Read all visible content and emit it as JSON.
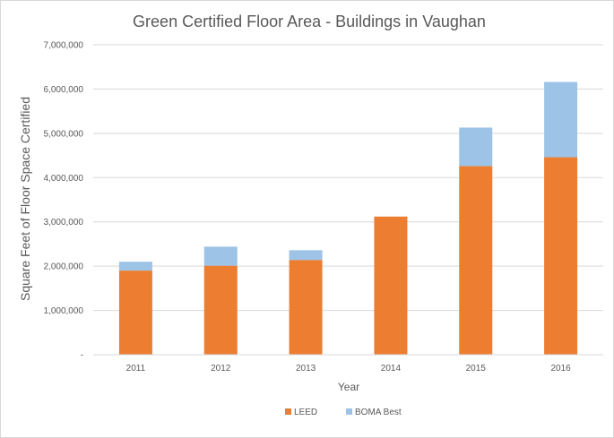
{
  "chart_data": {
    "type": "bar",
    "stacked": true,
    "title": "Green Certified Floor Area - Buildings in Vaughan",
    "xlabel": "Year",
    "ylabel": "Square Feet of Floor Space Certified",
    "categories": [
      "2011",
      "2012",
      "2013",
      "2014",
      "2015",
      "2016"
    ],
    "series": [
      {
        "name": "LEED",
        "color": "#ed7d31",
        "values": [
          1900000,
          2010000,
          2140000,
          3120000,
          4260000,
          4460000
        ]
      },
      {
        "name": "BOMA Best",
        "color": "#9dc3e6",
        "values": [
          200000,
          430000,
          220000,
          0,
          870000,
          1700000
        ]
      }
    ],
    "ylim": [
      0,
      7000000
    ],
    "yticks": [
      0,
      1000000,
      2000000,
      3000000,
      4000000,
      5000000,
      6000000,
      7000000
    ],
    "ytick_labels": [
      "-",
      "1,000,000",
      "2,000,000",
      "3,000,000",
      "4,000,000",
      "5,000,000",
      "6,000,000",
      "7,000,000"
    ],
    "grid": true,
    "legend_position": "bottom"
  }
}
